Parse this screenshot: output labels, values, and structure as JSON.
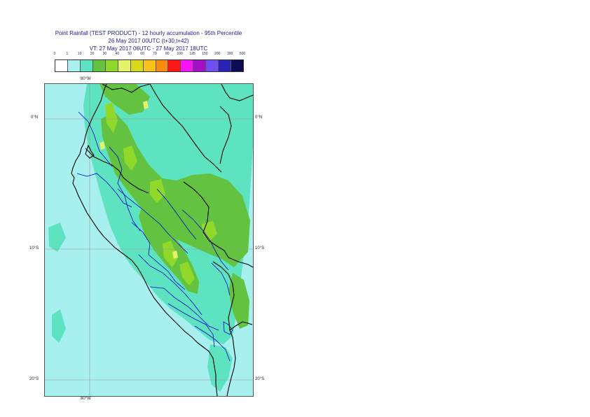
{
  "title": {
    "line1": "Point Rainfall (TEST PRODUCT) - 12 hourly accumulation - 95th Percentile",
    "line2": "26 May 2017 00UTC (t+30,t+42)",
    "line3": "VT: 27 May 2017 06UTC - 27 May 2017 18UTC"
  },
  "legend": {
    "thresholds": [
      "0",
      "1",
      "10",
      "20",
      "30",
      "40",
      "50",
      "60",
      "70",
      "80",
      "100",
      "125",
      "150",
      "200",
      "300",
      "500"
    ],
    "colors": [
      "#ffffff",
      "#a9f0ef",
      "#5ee3c0",
      "#63c341",
      "#90d92a",
      "#e3f46a",
      "#d7d91c",
      "#f9c11a",
      "#fb8a10",
      "#fb1818",
      "#f515f7",
      "#a410c6",
      "#6f4ff2",
      "#2a24b5",
      "#0c0c55"
    ]
  },
  "map": {
    "colors": {
      "background": "#a8efef",
      "band_10_20": "#5ee3c0",
      "band_20_30": "#63c341",
      "band_30_40": "#90d92a",
      "band_40_50": "#e3f46a",
      "coast": "#000000",
      "border": "#0000cc",
      "grid": "#999999"
    },
    "lon_labels": {
      "top": "80°W",
      "bottom": "80°W"
    },
    "lat_labels": {
      "eq_left": "0°N",
      "eq_right": "0°N",
      "s10_left": "10°S",
      "s10_right": "10°S",
      "s20_left": "20°S",
      "s20_right": "20°S"
    }
  }
}
